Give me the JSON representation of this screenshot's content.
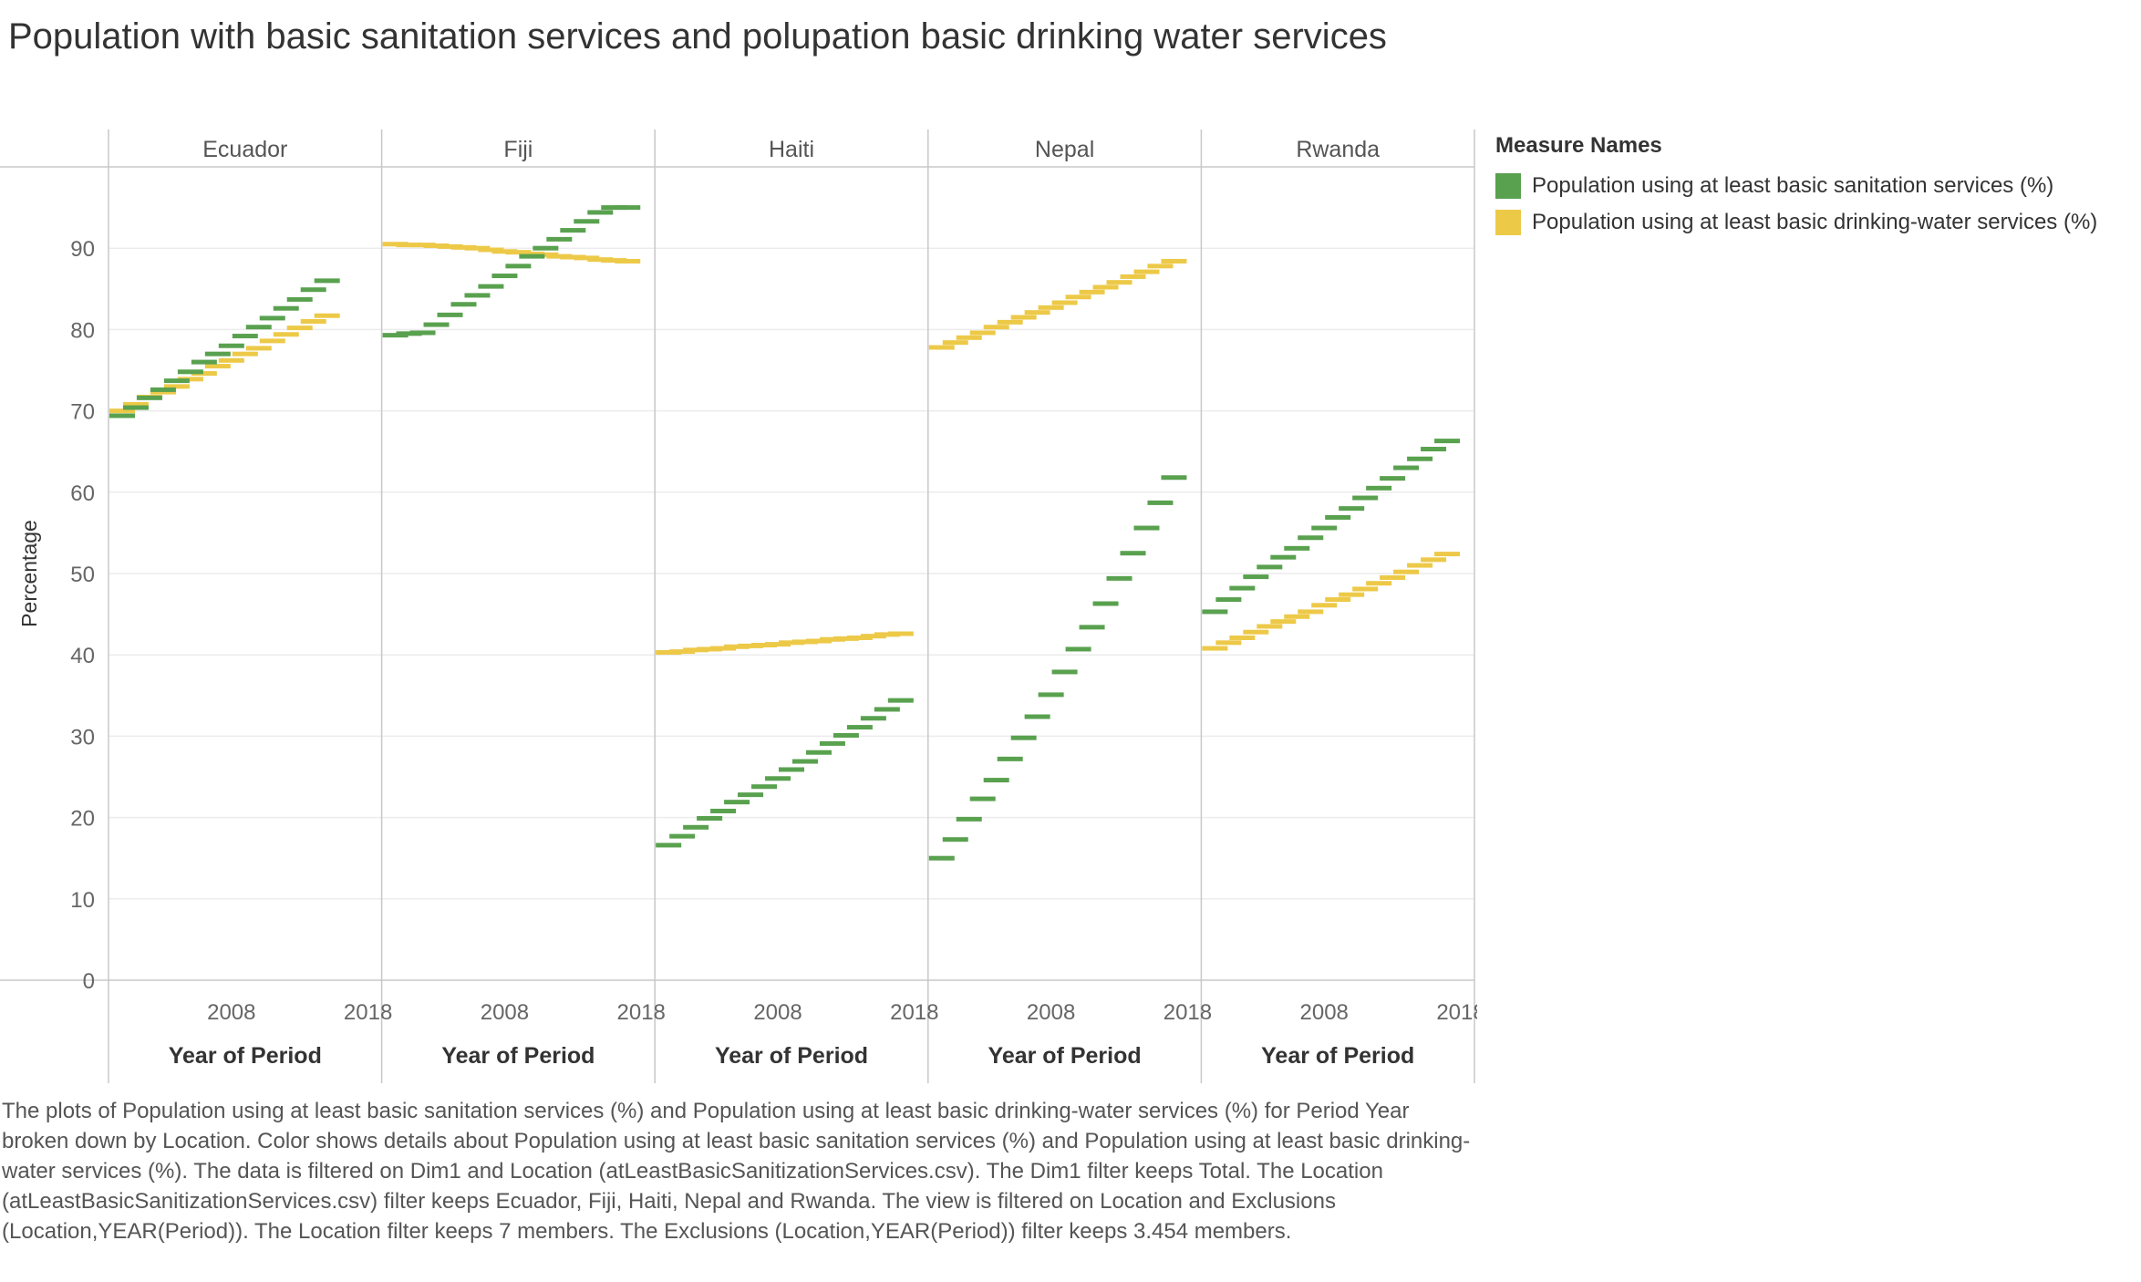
{
  "title": "Population with basic sanitation services and polupation basic drinking water services",
  "caption": "The plots of Population using at least basic sanitation services (%) and Population using at least basic drinking-water services (%) for Period Year broken down by Location.  Color shows details about Population using at least basic sanitation services (%) and Population using at least basic drinking-water services (%). The data is filtered on Dim1 and Location (atLeastBasicSanitizationServices.csv). The Dim1 filter keeps Total. The Location (atLeastBasicSanitizationServices.csv) filter keeps Ecuador, Fiji, Haiti, Nepal and Rwanda. The view is filtered on Location and Exclusions (Location,YEAR(Period)). The Location filter keeps 7 members. The Exclusions (Location,YEAR(Period)) filter keeps 3.454 members.",
  "legend": {
    "title": "Measure Names",
    "position": "right",
    "items": [
      {
        "label": "Population using at least basic sanitation services (%)",
        "color": "#59a14f"
      },
      {
        "label": "Population using at least basic drinking-water services (%)",
        "color": "#edc948"
      }
    ]
  },
  "chart_data": {
    "type": "scatter",
    "mark": "dash",
    "facet_by": "Location",
    "ylabel": "Percentage",
    "xlabel": "Year of Period",
    "ylim": [
      0,
      100
    ],
    "y_ticks": [
      0,
      10,
      20,
      30,
      40,
      50,
      60,
      70,
      80,
      90
    ],
    "x_ticks": [
      2008,
      2018
    ],
    "grid": true,
    "panels": [
      {
        "location": "Ecuador",
        "x": [
          2000,
          2001,
          2002,
          2003,
          2004,
          2005,
          2006,
          2007,
          2008,
          2009,
          2010,
          2011,
          2012,
          2013,
          2014,
          2015,
          2016,
          2017
        ],
        "series": [
          {
            "name": "Population using at least basic sanitation services (%)",
            "values": [
              69.4,
              70.4,
              71.6,
              72.6,
              73.7,
              74.8,
              76.0,
              77.0,
              78.0,
              79.2,
              80.3,
              81.4,
              82.6,
              83.7,
              84.9,
              86.0,
              null,
              null
            ]
          },
          {
            "name": "Population using at least basic drinking-water services (%)",
            "values": [
              70.0,
              70.8,
              71.7,
              72.3,
              73.0,
              73.9,
              74.6,
              75.5,
              76.2,
              77.0,
              77.7,
              78.6,
              79.4,
              80.2,
              81.0,
              81.7,
              null,
              null
            ]
          }
        ]
      },
      {
        "location": "Fiji",
        "x": [
          2000,
          2001,
          2002,
          2003,
          2004,
          2005,
          2006,
          2007,
          2008,
          2009,
          2010,
          2011,
          2012,
          2013,
          2014,
          2015,
          2016,
          2017
        ],
        "series": [
          {
            "name": "Population using at least basic sanitation services (%)",
            "values": [
              79.3,
              79.5,
              79.6,
              80.6,
              81.8,
              83.1,
              84.2,
              85.3,
              86.6,
              87.8,
              89.0,
              90.0,
              91.1,
              92.2,
              93.3,
              94.4,
              95.0,
              95.0
            ]
          },
          {
            "name": "Population using at least basic drinking-water services (%)",
            "values": [
              90.5,
              90.4,
              90.4,
              90.3,
              90.2,
              90.1,
              90.0,
              89.8,
              89.6,
              89.5,
              89.3,
              89.2,
              89.0,
              88.9,
              88.8,
              88.6,
              88.5,
              88.4
            ]
          }
        ]
      },
      {
        "location": "Haiti",
        "x": [
          2000,
          2001,
          2002,
          2003,
          2004,
          2005,
          2006,
          2007,
          2008,
          2009,
          2010,
          2011,
          2012,
          2013,
          2014,
          2015,
          2016,
          2017
        ],
        "series": [
          {
            "name": "Population using at least basic sanitation services (%)",
            "values": [
              16.6,
              17.7,
              18.8,
              19.9,
              20.8,
              21.9,
              22.8,
              23.8,
              24.8,
              25.9,
              26.9,
              28.0,
              29.1,
              30.1,
              31.1,
              32.2,
              33.3,
              34.4
            ]
          },
          {
            "name": "Population using at least basic drinking-water services (%)",
            "values": [
              40.3,
              40.4,
              40.6,
              40.7,
              40.8,
              41.0,
              41.1,
              41.2,
              41.3,
              41.5,
              41.6,
              41.7,
              41.9,
              42.0,
              42.1,
              42.3,
              42.5,
              42.6
            ]
          }
        ]
      },
      {
        "location": "Nepal",
        "x": [
          2000,
          2001,
          2002,
          2003,
          2004,
          2005,
          2006,
          2007,
          2008,
          2009,
          2010,
          2011,
          2012,
          2013,
          2014,
          2015,
          2016,
          2017
        ],
        "series": [
          {
            "name": "Population using at least basic sanitation services (%)",
            "values": [
              15.0,
              17.3,
              19.8,
              22.3,
              24.6,
              27.2,
              29.8,
              32.4,
              35.1,
              37.9,
              40.7,
              43.4,
              46.3,
              49.4,
              52.5,
              55.6,
              58.7,
              61.8
            ]
          },
          {
            "name": "Population using at least basic drinking-water services (%)",
            "values": [
              77.8,
              78.4,
              79.0,
              79.6,
              80.3,
              80.9,
              81.5,
              82.1,
              82.7,
              83.3,
              84.0,
              84.6,
              85.2,
              85.8,
              86.5,
              87.1,
              87.8,
              88.4
            ]
          }
        ]
      },
      {
        "location": "Rwanda",
        "x": [
          2000,
          2001,
          2002,
          2003,
          2004,
          2005,
          2006,
          2007,
          2008,
          2009,
          2010,
          2011,
          2012,
          2013,
          2014,
          2015,
          2016,
          2017
        ],
        "series": [
          {
            "name": "Population using at least basic sanitation services (%)",
            "values": [
              45.3,
              46.8,
              48.2,
              49.6,
              50.8,
              52.0,
              53.1,
              54.4,
              55.6,
              56.9,
              58.0,
              59.3,
              60.5,
              61.7,
              63.0,
              64.1,
              65.3,
              66.3
            ]
          },
          {
            "name": "Population using at least basic drinking-water services (%)",
            "values": [
              40.8,
              41.5,
              42.1,
              42.8,
              43.5,
              44.1,
              44.7,
              45.3,
              46.1,
              46.8,
              47.4,
              48.1,
              48.8,
              49.5,
              50.2,
              51.0,
              51.7,
              52.4
            ]
          }
        ]
      }
    ]
  }
}
